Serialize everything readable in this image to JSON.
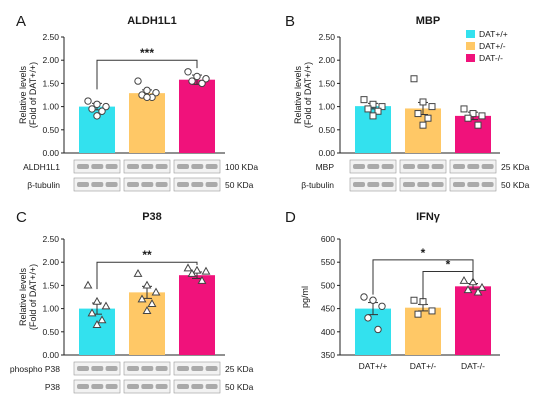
{
  "colors": {
    "DAT+/+": "#33E1EE",
    "DAT+/-": "#FFC866",
    "DAT-/-": "#F0127B"
  },
  "legend": {
    "position": "top-right of panel B",
    "entries": [
      "DAT+/+",
      "DAT+/-",
      "DAT-/-"
    ]
  },
  "chart_data": [
    {
      "panel": "A",
      "title": "ALDH1L1",
      "type": "bar",
      "ylabel": [
        "Relative levels",
        "(Fold of DAT+/+)"
      ],
      "ylim": [
        0,
        2.5
      ],
      "yticks": [
        "0.00",
        "0.50",
        "1.00",
        "1.50",
        "2.00",
        "2.50"
      ],
      "categories": [
        "DAT+/+",
        "DAT+/-",
        "DAT-/-"
      ],
      "values": [
        1.0,
        1.29,
        1.58
      ],
      "sem": [
        0.07,
        0.07,
        0.1
      ],
      "marker": "circle",
      "points": [
        [
          1.12,
          1.05,
          1.0,
          0.95,
          0.9,
          0.8
        ],
        [
          1.55,
          1.35,
          1.3,
          1.25,
          1.2,
          1.2
        ],
        [
          1.75,
          1.65,
          1.6,
          1.55,
          1.5
        ]
      ],
      "significance": [
        {
          "from": 0,
          "to": 2,
          "label": "***"
        }
      ],
      "blot": {
        "rows": [
          {
            "label": "ALDH1L1",
            "kda": "100 KDa"
          },
          {
            "label": "β-tubulin",
            "kda": "50 KDa"
          }
        ]
      }
    },
    {
      "panel": "B",
      "title": "MBP",
      "type": "bar",
      "ylabel": [
        "Relative levels",
        "(Fold of DAT+/+)"
      ],
      "ylim": [
        0,
        2.5
      ],
      "yticks": [
        "0.00",
        "0.50",
        "1.00",
        "1.50",
        "2.00",
        "2.50"
      ],
      "categories": [
        "DAT+/+",
        "DAT+/-",
        "DAT-/-"
      ],
      "values": [
        1.01,
        0.96,
        0.8
      ],
      "sem": [
        0.06,
        0.13,
        0.08
      ],
      "marker": "square",
      "points": [
        [
          1.15,
          1.05,
          1.0,
          0.95,
          0.9,
          0.8
        ],
        [
          1.6,
          1.1,
          1.0,
          0.85,
          0.75,
          0.6
        ],
        [
          0.95,
          0.85,
          0.8,
          0.75,
          0.6
        ]
      ],
      "significance": [],
      "blot": {
        "rows": [
          {
            "label": "MBP",
            "kda": "25 KDa"
          },
          {
            "label": "β-tubulin",
            "kda": "50 KDa"
          }
        ]
      }
    },
    {
      "panel": "C",
      "title": "P38",
      "type": "bar",
      "ylabel": [
        "Relative levels",
        "(Fold of DAT+/+)"
      ],
      "ylim": [
        0,
        2.5
      ],
      "yticks": [
        "0.00",
        "0.50",
        "1.00",
        "1.50",
        "2.00",
        "2.50"
      ],
      "categories": [
        "DAT+/+",
        "DAT+/-",
        "DAT-/-"
      ],
      "values": [
        1.0,
        1.35,
        1.72
      ],
      "sem": [
        0.12,
        0.13,
        0.07
      ],
      "marker": "triangle",
      "points": [
        [
          1.5,
          1.15,
          1.05,
          0.9,
          0.75,
          0.65
        ],
        [
          1.75,
          1.5,
          1.35,
          1.2,
          1.1,
          0.95
        ],
        [
          1.87,
          1.82,
          1.8,
          1.75,
          1.6
        ]
      ],
      "significance": [
        {
          "from": 0,
          "to": 2,
          "label": "**"
        }
      ],
      "blot": {
        "rows": [
          {
            "label": "phospho P38",
            "kda": "25 KDa"
          },
          {
            "label": "P38",
            "kda": "50 KDa"
          }
        ]
      }
    },
    {
      "panel": "D",
      "title": "IFNγ",
      "type": "bar",
      "ylabel": [
        "pg/ml"
      ],
      "ylim": [
        350,
        600
      ],
      "yticks": [
        "350",
        "400",
        "450",
        "500",
        "550",
        "600"
      ],
      "categories": [
        "DAT+/+",
        "DAT+/-",
        "DAT-/-"
      ],
      "values": [
        450,
        452,
        498
      ],
      "sem": [
        13,
        7,
        6
      ],
      "marker": "mixed",
      "points": [
        [
          475,
          468,
          455,
          430,
          405
        ],
        [
          468,
          465,
          445,
          438
        ],
        [
          510,
          507,
          495,
          490,
          485
        ]
      ],
      "significance": [
        {
          "from": 0,
          "to": 2,
          "label": "*"
        },
        {
          "from": 1,
          "to": 2,
          "label": "*"
        }
      ],
      "blot": null
    }
  ]
}
